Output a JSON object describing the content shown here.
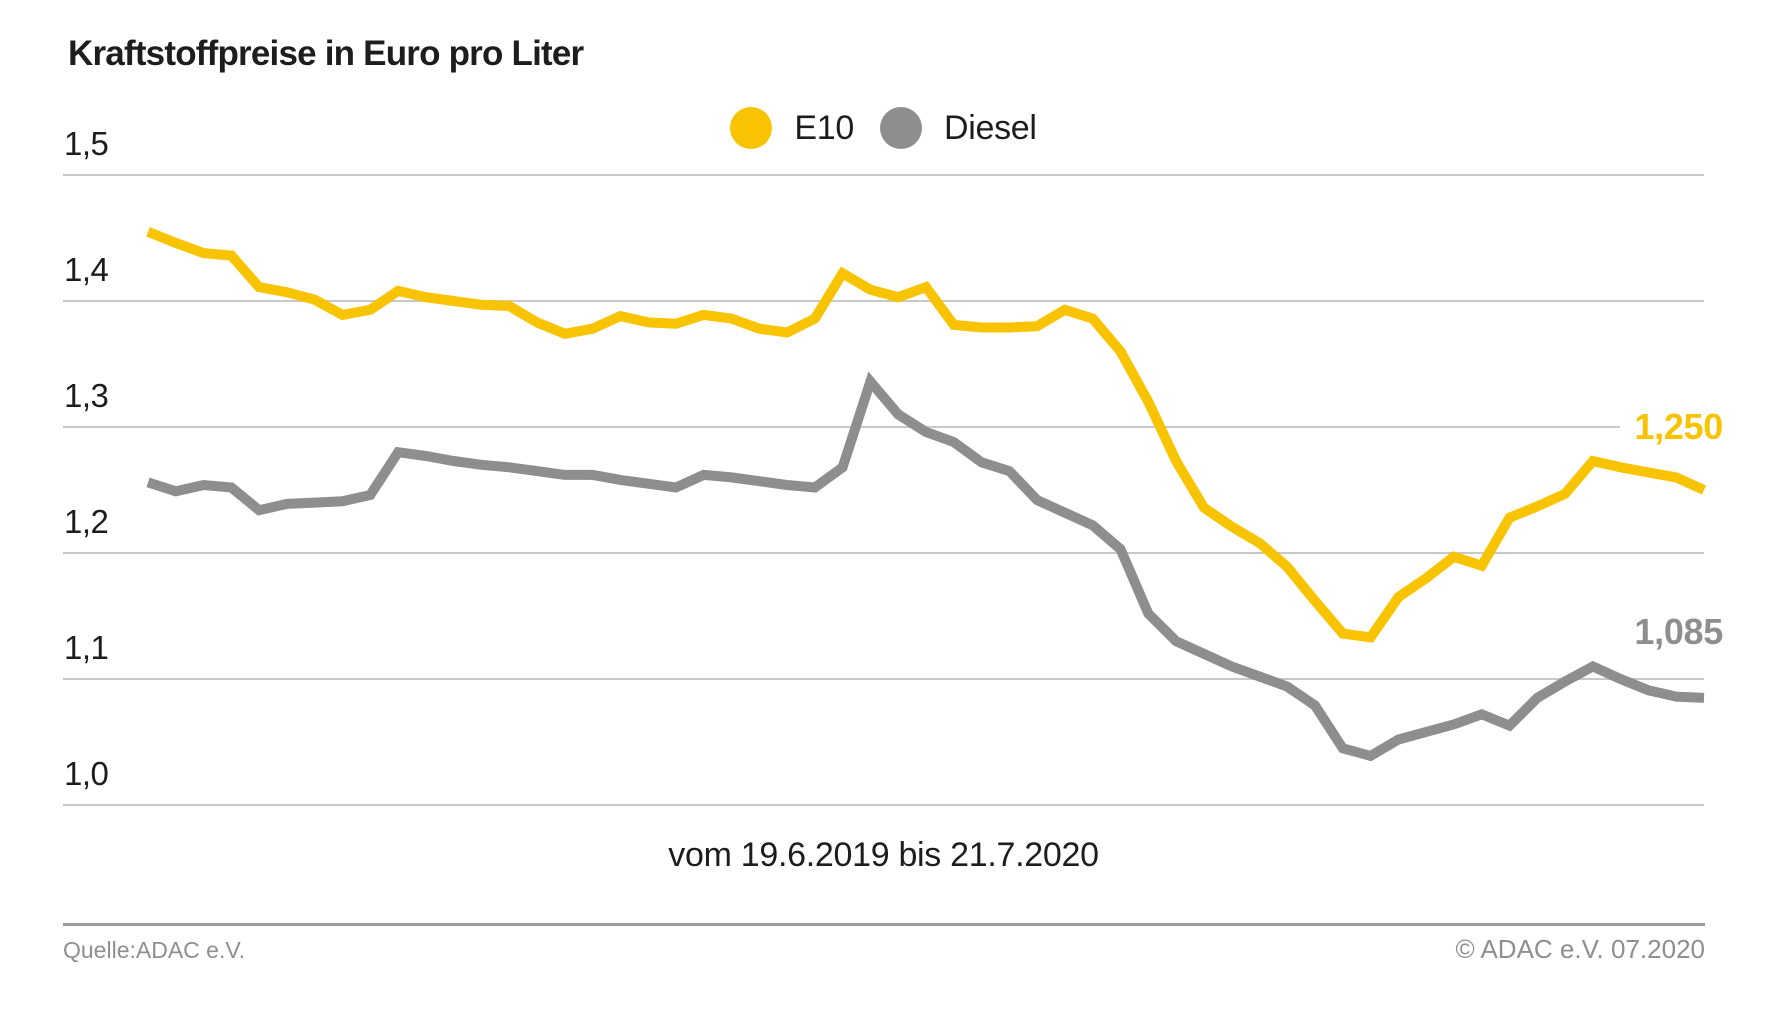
{
  "title": "Kraftstoffpreise in Euro pro Liter",
  "legend": [
    {
      "label": "E10",
      "color": "#F8C300"
    },
    {
      "label": "Diesel",
      "color": "#8E8E8E"
    }
  ],
  "colors": {
    "grid": "#C8C8C8",
    "text": "#1d1d1b",
    "footer_text": "#8f8f8f"
  },
  "chart_data": {
    "type": "line",
    "title": "Kraftstoffpreise in Euro pro Liter",
    "x_caption": "vom 19.6.2019 bis 21.7.2020",
    "x_period": {
      "from": "19.6.2019",
      "to": "21.7.2020",
      "interval": "weekly"
    },
    "xlabel": "",
    "ylabel": "Euro pro Liter",
    "ylim": [
      1.0,
      1.5
    ],
    "grid": "horizontal",
    "legend_position": "top-center",
    "y_axis": {
      "ticks": [
        {
          "value": 1.5,
          "label": "1,5"
        },
        {
          "value": 1.4,
          "label": "1,4"
        },
        {
          "value": 1.3,
          "label": "1,3"
        },
        {
          "value": 1.2,
          "label": "1,2"
        },
        {
          "value": 1.1,
          "label": "1,1"
        },
        {
          "value": 1.0,
          "label": "1,0"
        }
      ]
    },
    "series": [
      {
        "name": "E10",
        "color": "#F8C300",
        "end_label": "1,250",
        "end_value": 1.25,
        "values": [
          1.455,
          1.446,
          1.438,
          1.436,
          1.411,
          1.407,
          1.401,
          1.389,
          1.393,
          1.408,
          1.403,
          1.4,
          1.397,
          1.396,
          1.383,
          1.374,
          1.378,
          1.388,
          1.383,
          1.382,
          1.389,
          1.386,
          1.378,
          1.375,
          1.386,
          1.422,
          1.409,
          1.403,
          1.411,
          1.381,
          1.379,
          1.379,
          1.38,
          1.393,
          1.386,
          1.36,
          1.32,
          1.273,
          1.236,
          1.221,
          1.208,
          1.189,
          1.162,
          1.136,
          1.133,
          1.165,
          1.18,
          1.197,
          1.19,
          1.228,
          1.237,
          1.247,
          1.273,
          1.268,
          1.264,
          1.26,
          1.25
        ]
      },
      {
        "name": "Diesel",
        "color": "#8E8E8E",
        "end_label": "1,085",
        "end_value": 1.085,
        "values": [
          1.256,
          1.249,
          1.254,
          1.252,
          1.234,
          1.239,
          1.24,
          1.241,
          1.246,
          1.28,
          1.277,
          1.273,
          1.27,
          1.268,
          1.265,
          1.262,
          1.262,
          1.258,
          1.255,
          1.252,
          1.262,
          1.26,
          1.257,
          1.254,
          1.252,
          1.268,
          1.336,
          1.31,
          1.296,
          1.288,
          1.272,
          1.265,
          1.242,
          1.232,
          1.222,
          1.203,
          1.152,
          1.13,
          1.12,
          1.11,
          1.102,
          1.094,
          1.079,
          1.045,
          1.039,
          1.052,
          1.058,
          1.064,
          1.072,
          1.063,
          1.085,
          1.098,
          1.11,
          1.1,
          1.091,
          1.086,
          1.085
        ]
      }
    ]
  },
  "footer": {
    "source": "Quelle:ADAC e.V.",
    "copyright": "© ADAC e.V. 07.2020"
  }
}
